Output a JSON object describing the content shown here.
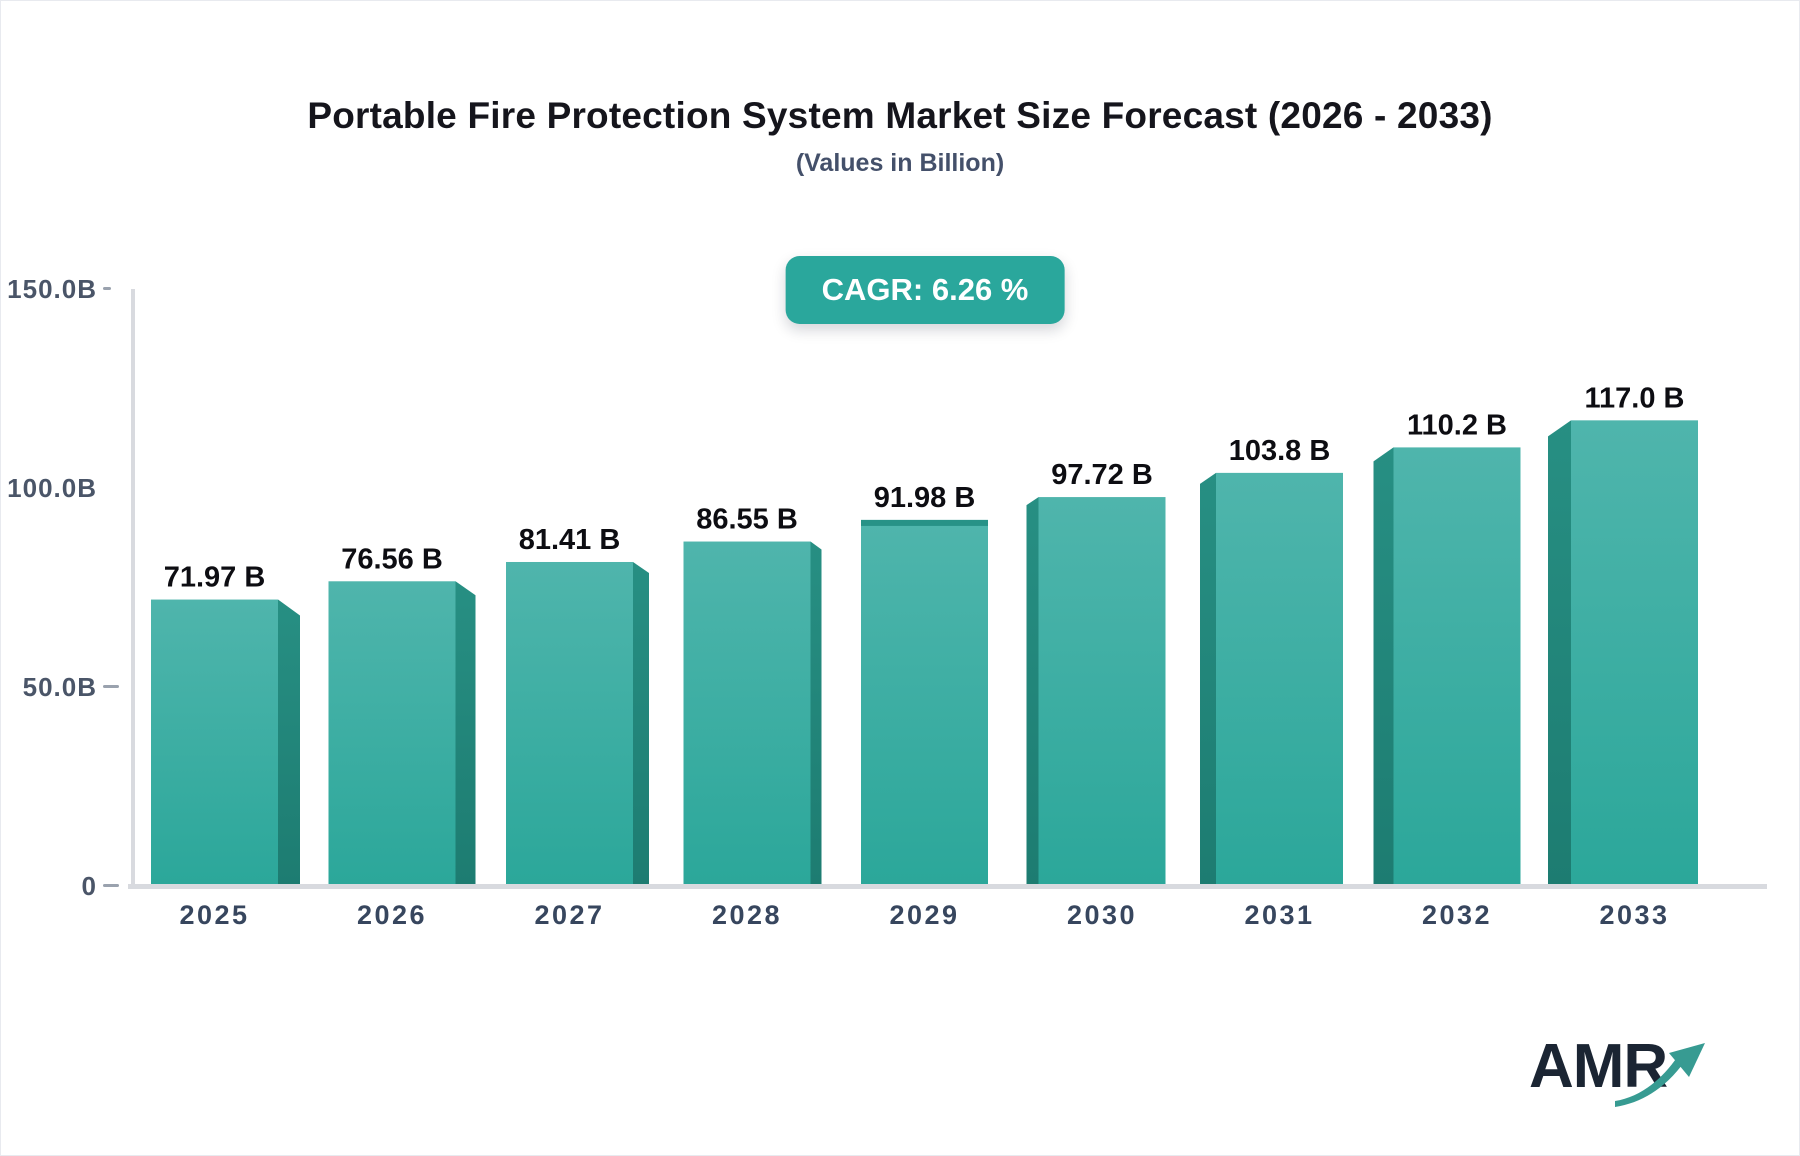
{
  "header": {
    "title": "Portable Fire Protection System Market Size Forecast (2026 - 2033)",
    "subtitle": "(Values in Billion)",
    "cagr_label": "CAGR: 6.26 %"
  },
  "chart_data": {
    "type": "bar",
    "title": "Portable Fire Protection System Market Size Forecast (2026 - 2033)",
    "subtitle": "(Values in Billion)",
    "cagr_text": "CAGR: 6.26 %",
    "categories": [
      "2025",
      "2026",
      "2027",
      "2028",
      "2029",
      "2030",
      "2031",
      "2032",
      "2033"
    ],
    "values": [
      71.97,
      76.56,
      81.41,
      86.55,
      91.98,
      97.72,
      103.8,
      110.2,
      117.0
    ],
    "value_labels": [
      "71.97 B",
      "76.56 B",
      "81.41 B",
      "86.55 B",
      "91.98 B",
      "97.72 B",
      "103.8 B",
      "110.2 B",
      "117.0 B"
    ],
    "xlabel": "",
    "ylabel": "",
    "ylim": [
      0,
      150
    ],
    "y_ticks": [
      {
        "label": "150.0B",
        "value": 150
      },
      {
        "label": "100.0B",
        "value": 100
      },
      {
        "label": "50.0B",
        "value": 50
      },
      {
        "label": "0",
        "value": 0
      }
    ],
    "grid": false,
    "legend": false,
    "layout_hint": "3d-perspective-bars, labels above bars, y axis left, no gridlines",
    "colors": {
      "accent": "#2AA79C",
      "bar_face_top": "#4FB5AC",
      "bar_face_bottom": "#2BA79A",
      "bar_side_light": "#278F83",
      "bar_side_dark": "#1D7C71",
      "bar_top_edge": "#279287",
      "axis_line": "#D8DADF",
      "tick_dash": "#9AA2AE",
      "tick_text": "#4A5568",
      "category_text": "#37465E",
      "value_text": "#0D0D12",
      "title_text": "#15151C",
      "subtitle_text": "#44506A",
      "logo_text": "#1B2533",
      "logo_arrow": "#379B92"
    }
  },
  "footer": {
    "logo_text": "AMR"
  }
}
